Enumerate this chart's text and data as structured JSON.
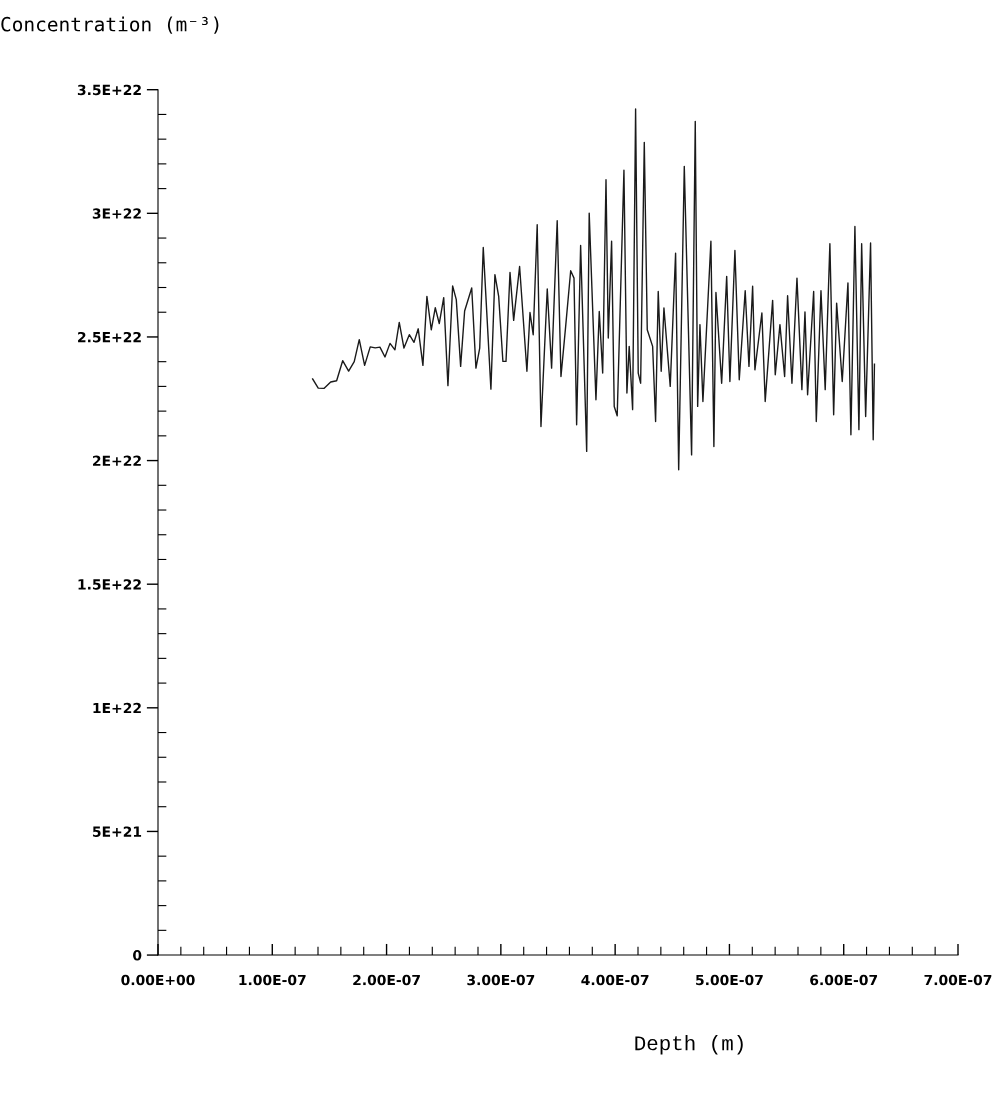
{
  "chart_data": {
    "type": "line",
    "xlabel": "Depth (m)",
    "ylabel": "Concentration (m⁻³)",
    "xlim": [
      0,
      7e-07
    ],
    "ylim": [
      0,
      3.5e+22
    ],
    "xticks": [
      {
        "value": 0,
        "label": "0.00E+00"
      },
      {
        "value": 1e-07,
        "label": "1.00E-07"
      },
      {
        "value": 2e-07,
        "label": "2.00E-07"
      },
      {
        "value": 3e-07,
        "label": "3.00E-07"
      },
      {
        "value": 4e-07,
        "label": "4.00E-07"
      },
      {
        "value": 5e-07,
        "label": "5.00E-07"
      },
      {
        "value": 6e-07,
        "label": "6.00E-07"
      },
      {
        "value": 7e-07,
        "label": "7.00E-07"
      },
      {
        "value": 2e-08,
        "label": null
      },
      {
        "value": 4e-08,
        "label": null
      },
      {
        "value": 6e-08,
        "label": null
      },
      {
        "value": 8e-08,
        "label": null
      },
      {
        "value": 1.2e-07,
        "label": null
      },
      {
        "value": 1.4e-07,
        "label": null
      },
      {
        "value": 1.6e-07,
        "label": null
      },
      {
        "value": 1.8e-07,
        "label": null
      },
      {
        "value": 2.2e-07,
        "label": null
      },
      {
        "value": 2.4e-07,
        "label": null
      },
      {
        "value": 2.6e-07,
        "label": null
      },
      {
        "value": 2.8e-07,
        "label": null
      },
      {
        "value": 3.2e-07,
        "label": null
      },
      {
        "value": 3.4e-07,
        "label": null
      },
      {
        "value": 3.6e-07,
        "label": null
      },
      {
        "value": 3.8e-07,
        "label": null
      },
      {
        "value": 4.2e-07,
        "label": null
      },
      {
        "value": 4.4e-07,
        "label": null
      },
      {
        "value": 4.6e-07,
        "label": null
      },
      {
        "value": 4.8e-07,
        "label": null
      },
      {
        "value": 5.2e-07,
        "label": null
      },
      {
        "value": 5.4e-07,
        "label": null
      },
      {
        "value": 5.6e-07,
        "label": null
      },
      {
        "value": 5.8e-07,
        "label": null
      },
      {
        "value": 6.2e-07,
        "label": null
      },
      {
        "value": 6.4e-07,
        "label": null
      },
      {
        "value": 6.6e-07,
        "label": null
      },
      {
        "value": 6.8e-07,
        "label": null
      }
    ],
    "yticks": [
      {
        "value": 0,
        "label": "0"
      },
      {
        "value": 5e+21,
        "label": "5E+21"
      },
      {
        "value": 1e+22,
        "label": "1E+22"
      },
      {
        "value": 1.5e+22,
        "label": "1.5E+22"
      },
      {
        "value": 2e+22,
        "label": "2E+22"
      },
      {
        "value": 2.5e+22,
        "label": "2.5E+22"
      },
      {
        "value": 3e+22,
        "label": "3E+22"
      },
      {
        "value": 3.5e+22,
        "label": "3.5E+22"
      },
      {
        "value": 1e+21,
        "label": null
      },
      {
        "value": 2e+21,
        "label": null
      },
      {
        "value": 3e+21,
        "label": null
      },
      {
        "value": 4e+21,
        "label": null
      },
      {
        "value": 6e+21,
        "label": null
      },
      {
        "value": 7e+21,
        "label": null
      },
      {
        "value": 8e+21,
        "label": null
      },
      {
        "value": 9e+21,
        "label": null
      },
      {
        "value": 1.1e+22,
        "label": null
      },
      {
        "value": 1.2e+22,
        "label": null
      },
      {
        "value": 1.3e+22,
        "label": null
      },
      {
        "value": 1.4e+22,
        "label": null
      },
      {
        "value": 1.6e+22,
        "label": null
      },
      {
        "value": 1.7e+22,
        "label": null
      },
      {
        "value": 1.8e+22,
        "label": null
      },
      {
        "value": 1.9e+22,
        "label": null
      },
      {
        "value": 2.1e+22,
        "label": null
      },
      {
        "value": 2.2e+22,
        "label": null
      },
      {
        "value": 2.3e+22,
        "label": null
      },
      {
        "value": 2.4e+22,
        "label": null
      },
      {
        "value": 2.6e+22,
        "label": null
      },
      {
        "value": 2.7e+22,
        "label": null
      },
      {
        "value": 2.8e+22,
        "label": null
      },
      {
        "value": 2.9e+22,
        "label": null
      },
      {
        "value": 3.1e+22,
        "label": null
      },
      {
        "value": 3.2e+22,
        "label": null
      },
      {
        "value": 3.3e+22,
        "label": null
      },
      {
        "value": 3.4e+22,
        "label": null
      }
    ],
    "grid": false,
    "legend": false,
    "marker": "none",
    "line_style": "solid",
    "series": [
      {
        "color": "#1a1a1a",
        "x": [
          1.353e-07,
          1.402e-07,
          1.452e-07,
          1.511e-07,
          1.563e-07,
          1.616e-07,
          1.668e-07,
          1.717e-07,
          1.761e-07,
          1.808e-07,
          1.857e-07,
          1.901e-07,
          1.942e-07,
          1.986e-07,
          2.03e-07,
          2.073e-07,
          2.111e-07,
          2.152e-07,
          2.199e-07,
          2.24e-07,
          2.277e-07,
          2.318e-07,
          2.353e-07,
          2.391e-07,
          2.426e-07,
          2.461e-07,
          2.5e-07,
          2.537e-07,
          2.578e-07,
          2.61e-07,
          2.648e-07,
          2.683e-07,
          2.745e-07,
          2.782e-07,
          2.815e-07,
          2.846e-07,
          2.913e-07,
          2.948e-07,
          2.981e-07,
          3.018e-07,
          3.045e-07,
          3.08e-07,
          3.112e-07,
          3.164e-07,
          3.228e-07,
          3.255e-07,
          3.283e-07,
          3.318e-07,
          3.351e-07,
          3.406e-07,
          3.444e-07,
          3.493e-07,
          3.526e-07,
          3.567e-07,
          3.611e-07,
          3.64e-07,
          3.663e-07,
          3.698e-07,
          3.751e-07,
          3.773e-07,
          3.832e-07,
          3.861e-07,
          3.891e-07,
          3.92e-07,
          3.94e-07,
          3.969e-07,
          3.992e-07,
          4.018e-07,
          4.077e-07,
          4.103e-07,
          4.123e-07,
          4.153e-07,
          4.179e-07,
          4.202e-07,
          4.223e-07,
          4.255e-07,
          4.281e-07,
          4.328e-07,
          4.354e-07,
          4.377e-07,
          4.403e-07,
          4.427e-07,
          4.482e-07,
          4.529e-07,
          4.556e-07,
          4.605e-07,
          4.669e-07,
          4.701e-07,
          4.722e-07,
          4.742e-07,
          4.768e-07,
          4.838e-07,
          4.864e-07,
          4.882e-07,
          4.932e-07,
          4.976e-07,
          5.004e-07,
          5.048e-07,
          5.086e-07,
          5.138e-07,
          5.171e-07,
          5.203e-07,
          5.223e-07,
          5.284e-07,
          5.313e-07,
          5.378e-07,
          5.401e-07,
          5.442e-07,
          5.483e-07,
          5.509e-07,
          5.547e-07,
          5.591e-07,
          5.634e-07,
          5.661e-07,
          5.684e-07,
          5.737e-07,
          5.76e-07,
          5.801e-07,
          5.838e-07,
          5.879e-07,
          5.912e-07,
          5.938e-07,
          5.987e-07,
          6.037e-07,
          6.063e-07,
          6.098e-07,
          6.133e-07,
          6.157e-07,
          6.192e-07,
          6.235e-07,
          6.258e-07,
          6.269e-07
        ],
        "values": [
          2.33e+22,
          2.293e+22,
          2.292e+22,
          2.318e+22,
          2.323e+22,
          2.404e+22,
          2.362e+22,
          2.4e+22,
          2.489e+22,
          2.385e+22,
          2.46e+22,
          2.456e+22,
          2.459e+22,
          2.419e+22,
          2.474e+22,
          2.448e+22,
          2.559e+22,
          2.455e+22,
          2.509e+22,
          2.478e+22,
          2.533e+22,
          2.385e+22,
          2.664e+22,
          2.529e+22,
          2.618e+22,
          2.554e+22,
          2.659e+22,
          2.303e+22,
          2.706e+22,
          2.651e+22,
          2.381e+22,
          2.605e+22,
          2.698e+22,
          2.374e+22,
          2.455e+22,
          2.862e+22,
          2.289e+22,
          2.752e+22,
          2.664e+22,
          2.401e+22,
          2.401e+22,
          2.761e+22,
          2.567e+22,
          2.785e+22,
          2.361e+22,
          2.599e+22,
          2.509e+22,
          2.954e+22,
          2.138e+22,
          2.694e+22,
          2.374e+22,
          2.97e+22,
          2.34e+22,
          2.543e+22,
          2.768e+22,
          2.738e+22,
          2.145e+22,
          2.87e+22,
          2.037e+22,
          3.001e+22,
          2.246e+22,
          2.603e+22,
          2.354e+22,
          3.136e+22,
          2.496e+22,
          2.887e+22,
          2.219e+22,
          2.181e+22,
          3.174e+22,
          2.273e+22,
          2.462e+22,
          2.206e+22,
          3.422e+22,
          2.354e+22,
          2.313e+22,
          3.287e+22,
          2.529e+22,
          2.462e+22,
          2.158e+22,
          2.684e+22,
          2.361e+22,
          2.617e+22,
          2.3e+22,
          2.839e+22,
          1.963e+22,
          3.19e+22,
          2.023e+22,
          3.372e+22,
          2.219e+22,
          2.55e+22,
          2.239e+22,
          2.887e+22,
          2.057e+22,
          2.68e+22,
          2.313e+22,
          2.745e+22,
          2.32e+22,
          2.85e+22,
          2.327e+22,
          2.687e+22,
          2.381e+22,
          2.705e+22,
          2.367e+22,
          2.597e+22,
          2.239e+22,
          2.648e+22,
          2.347e+22,
          2.55e+22,
          2.34e+22,
          2.667e+22,
          2.313e+22,
          2.738e+22,
          2.287e+22,
          2.601e+22,
          2.266e+22,
          2.684e+22,
          2.158e+22,
          2.687e+22,
          2.287e+22,
          2.877e+22,
          2.185e+22,
          2.637e+22,
          2.32e+22,
          2.718e+22,
          2.104e+22,
          2.947e+22,
          2.125e+22,
          2.877e+22,
          2.178e+22,
          2.88e+22,
          2.084e+22,
          2.39e+22
        ]
      }
    ]
  }
}
